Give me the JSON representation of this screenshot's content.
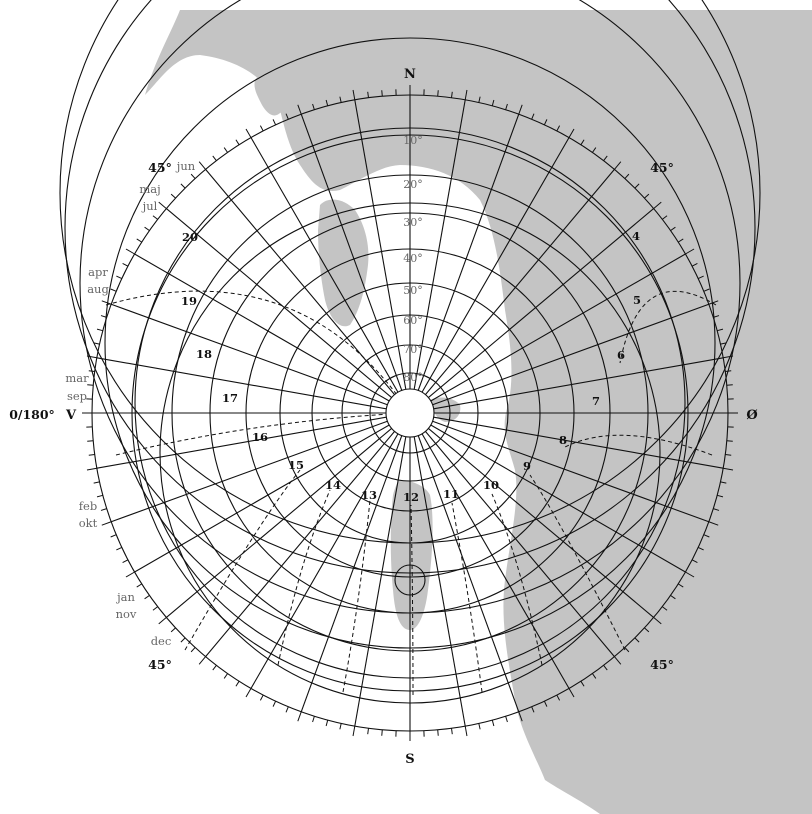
{
  "directions": {
    "north": "N",
    "south": "S",
    "east": "Ø",
    "west": "V"
  },
  "west_azimuth_label": "0/180°",
  "altitudes": [
    "10°",
    "20°",
    "30°",
    "40°",
    "50°",
    "60°",
    "70°",
    "80°"
  ],
  "corner_angle_label": "45°",
  "hours": [
    "4",
    "5",
    "6",
    "7",
    "8",
    "9",
    "10",
    "11",
    "12",
    "13",
    "14",
    "15",
    "16",
    "17",
    "18",
    "19",
    "20"
  ],
  "months": {
    "jun": "jun",
    "maj": "maj",
    "jul": "jul",
    "apr": "apr",
    "aug": "aug",
    "mar": "mar",
    "sep": "sep",
    "feb": "feb",
    "okt": "okt",
    "jan": "jan",
    "nov": "nov",
    "dec": "dec"
  },
  "colors": {
    "land": "#c4c4c4",
    "ink": "#111111",
    "muted": "#6a6a6a",
    "paper": "#ffffff"
  }
}
